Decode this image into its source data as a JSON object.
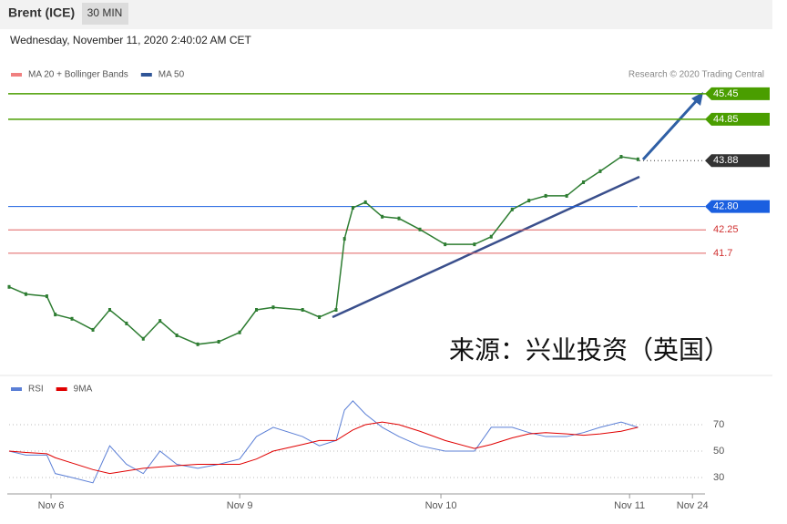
{
  "header": {
    "title": "Brent (ICE)",
    "interval": "30 MIN",
    "date": "Wednesday, November 11, 2020 2:40:02 AM CET",
    "credit": "Research © 2020 Trading Central",
    "watermark": "来源：兴业投资（英国）"
  },
  "chart_data": [
    {
      "type": "line",
      "legend": [
        {
          "name": "MA 20 + Bollinger Bands",
          "color": "#f08080"
        },
        {
          "name": "MA 50",
          "color": "#2f5597"
        }
      ],
      "x": [
        0,
        4,
        9,
        11,
        15,
        20,
        24,
        28,
        32,
        36,
        40,
        45,
        50,
        55,
        59,
        63,
        70,
        74,
        78,
        80,
        82,
        85,
        89,
        93,
        98,
        104,
        111,
        115,
        120,
        124,
        128,
        133,
        137,
        141,
        146,
        150
      ],
      "values": [
        40.91,
        40.74,
        40.69,
        40.26,
        40.16,
        39.9,
        40.37,
        40.05,
        39.69,
        40.11,
        39.77,
        39.56,
        39.62,
        39.84,
        40.37,
        40.43,
        40.37,
        40.2,
        40.37,
        42.04,
        42.77,
        42.9,
        42.56,
        42.52,
        42.26,
        41.91,
        41.91,
        42.09,
        42.73,
        42.94,
        43.05,
        43.05,
        43.37,
        43.63,
        43.97,
        43.91
      ],
      "color": "#2e7d32",
      "xlim": [
        0,
        166
      ],
      "ylim": [
        38.87,
        45.62
      ],
      "levels": [
        {
          "value": 45.45,
          "color": "#4a9e00"
        },
        {
          "value": 44.85,
          "color": "#4a9e00"
        },
        {
          "value": 43.88,
          "color": "#333333"
        },
        {
          "value": 42.8,
          "label": "42.80",
          "color": "#1a5fe0"
        },
        {
          "value": 42.25,
          "color": "#e06060"
        },
        {
          "value": 41.7,
          "color": "#e06060"
        }
      ]
    },
    {
      "type": "line",
      "x": [
        0,
        4,
        9,
        11,
        15,
        20,
        24,
        28,
        32,
        36,
        40,
        45,
        50,
        55,
        59,
        63,
        70,
        74,
        78,
        80,
        82,
        85,
        89,
        93,
        98,
        104,
        111,
        115,
        120,
        124,
        128,
        133,
        137,
        141,
        146,
        150
      ],
      "series": [
        {
          "name": "RSI",
          "color": "#5b7fd6",
          "values": [
            50,
            47,
            47,
            33,
            30,
            26,
            54,
            40,
            33,
            50,
            40,
            37,
            40,
            44,
            61,
            68,
            61,
            54,
            58,
            81,
            88,
            78,
            68,
            61,
            54,
            50,
            50,
            68,
            68,
            64,
            61,
            61,
            64,
            68,
            72,
            68
          ]
        },
        {
          "name": "9MA",
          "color": "#e00000",
          "values": [
            50,
            49,
            48,
            45,
            41,
            36,
            33,
            35,
            37,
            38,
            39,
            40,
            40,
            40,
            44,
            50,
            55,
            58,
            58,
            62,
            66,
            70,
            72,
            70,
            65,
            58,
            52,
            55,
            60,
            63,
            64,
            63,
            62,
            63,
            65,
            68
          ]
        }
      ],
      "xlim": [
        0,
        166
      ],
      "ylim": [
        20,
        100
      ],
      "yticks": [
        30,
        50,
        70
      ],
      "xticks": [
        {
          "value": 10,
          "label": "Nov 6"
        },
        {
          "value": 55,
          "label": "Nov 9"
        },
        {
          "value": 103,
          "label": "Nov 10"
        },
        {
          "value": 148,
          "label": "Nov 11"
        },
        {
          "value": 163,
          "label": "Nov 24"
        }
      ]
    }
  ]
}
